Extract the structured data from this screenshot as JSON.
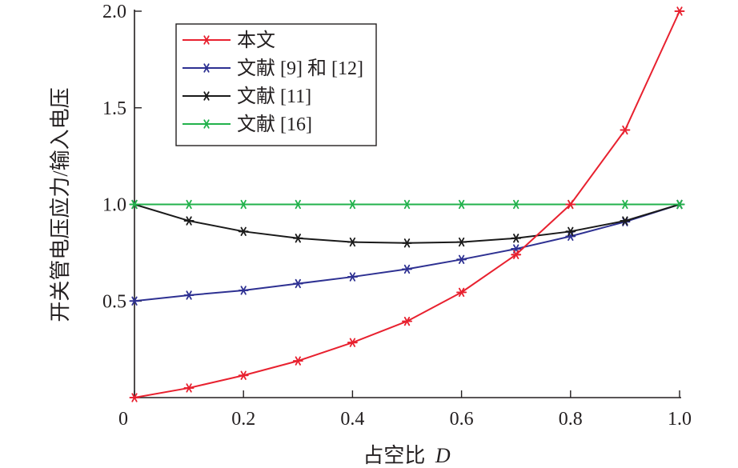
{
  "chart_data": {
    "type": "line",
    "xlabel": "占空比",
    "xlabel_var": "D",
    "ylabel": "开关管电压应力/输入电压",
    "x": [
      0,
      0.1,
      0.2,
      0.3,
      0.4,
      0.5,
      0.6,
      0.7,
      0.8,
      0.9,
      1.0
    ],
    "xlim": [
      0,
      1.0
    ],
    "ylim": [
      0,
      2.0
    ],
    "x_ticks": [
      "0",
      "0.2",
      "0.4",
      "0.6",
      "0.8",
      "1.0"
    ],
    "y_ticks": [
      "0.5",
      "1.0",
      "1.5",
      "2.0"
    ],
    "grid": false,
    "legend_position": "top-left",
    "marker": "asterisk",
    "series": [
      {
        "name": "本文",
        "color": "#e8212f",
        "values": [
          0,
          0.05,
          0.115,
          0.19,
          0.285,
          0.395,
          0.545,
          0.74,
          1.0,
          1.385,
          2.0
        ]
      },
      {
        "name": "文献 [9] 和 [12]",
        "color": "#2e3192",
        "values": [
          0.5,
          0.53,
          0.555,
          0.59,
          0.625,
          0.665,
          0.715,
          0.77,
          0.835,
          0.91,
          1.0
        ]
      },
      {
        "name": "文献 [11]",
        "color": "#1a1a1a",
        "values": [
          1.0,
          0.915,
          0.86,
          0.825,
          0.805,
          0.8,
          0.805,
          0.825,
          0.86,
          0.915,
          1.0
        ]
      },
      {
        "name": "文献 [16]",
        "color": "#22b24c",
        "values": [
          1.0,
          1.0,
          1.0,
          1.0,
          1.0,
          1.0,
          1.0,
          1.0,
          1.0,
          1.0,
          1.0
        ]
      }
    ]
  }
}
